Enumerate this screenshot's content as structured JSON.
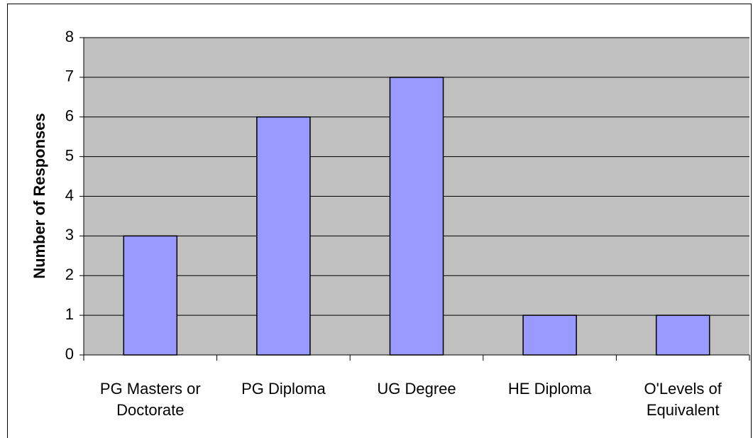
{
  "chart_data": {
    "type": "bar",
    "y_axis_label": "Number of Responses",
    "categories": [
      "PG Masters or Doctorate",
      "PG Diploma",
      "UG Degree",
      "HE Diploma",
      "O'Levels of Equivalent"
    ],
    "values": [
      3,
      6,
      7,
      1,
      1
    ],
    "color": "#9999ff",
    "ylim": [
      0,
      8
    ],
    "yticks": [
      0,
      1,
      2,
      3,
      4,
      5,
      6,
      7,
      8
    ],
    "grid": true
  }
}
